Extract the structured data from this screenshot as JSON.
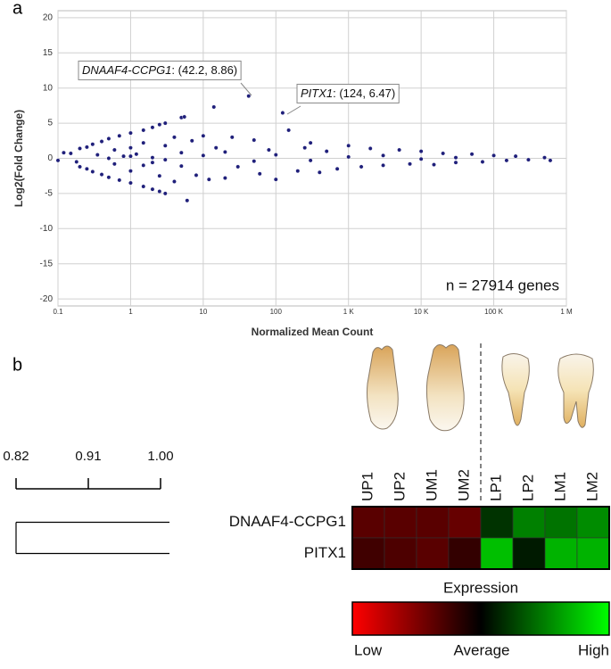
{
  "chart_data": [
    {
      "type": "scatter",
      "panel": "a",
      "xlabel": "Normalized Mean Count",
      "ylabel": "Log2(Fold Change)",
      "log_x": true,
      "grid": true,
      "color": "#1f1f7a",
      "xlim": [
        0.1,
        1000000
      ],
      "xticks": [
        0.1,
        1,
        10,
        100,
        {
          "value": 1000,
          "label": "1 K"
        },
        {
          "value": 10000,
          "label": "10 K"
        },
        {
          "value": 100000,
          "label": "100 K"
        },
        {
          "value": 1000000,
          "label": "1 M"
        }
      ],
      "ylim": [
        -21,
        21
      ],
      "yticks": [
        20,
        15,
        10,
        5,
        0,
        -5,
        -10,
        -15,
        -20
      ],
      "x": [
        0.1,
        0.12,
        0.15,
        0.18,
        0.2,
        0.2,
        0.25,
        0.25,
        0.3,
        0.3,
        0.35,
        0.4,
        0.4,
        0.5,
        0.5,
        0.6,
        0.6,
        0.7,
        0.7,
        0.8,
        1,
        1,
        1,
        1,
        1.2,
        1.5,
        1.5,
        1.5,
        1.5,
        2,
        2,
        2,
        2.5,
        2.5,
        2.5,
        3,
        3,
        3,
        4,
        4,
        5,
        5.5,
        6,
        5,
        7,
        8,
        10,
        12,
        14,
        15,
        20,
        25,
        30,
        42.2,
        50,
        60,
        80,
        100,
        124,
        150,
        200,
        250,
        300,
        400,
        500,
        700,
        1000,
        1500,
        2000,
        3000,
        5000,
        7000,
        10000,
        15000,
        20000,
        30000,
        50000,
        70000,
        100000,
        150000,
        200000,
        300000,
        500000,
        600000,
        0.5,
        1,
        2,
        3,
        5,
        10,
        20,
        50,
        100,
        300,
        1000,
        3000,
        10000,
        30000
      ],
      "values": [
        -0.3,
        0.8,
        0.7,
        -0.5,
        1.4,
        -1.2,
        1.6,
        -1.5,
        2.0,
        -1.9,
        0.5,
        2.4,
        -2.3,
        2.8,
        -2.7,
        1.2,
        -0.8,
        3.2,
        -3.1,
        0.3,
        3.6,
        -3.5,
        1.5,
        -1.8,
        0.6,
        4.0,
        -4.0,
        2.2,
        -1.0,
        4.4,
        -4.4,
        0.1,
        4.8,
        -4.7,
        -2.5,
        5.0,
        -5.0,
        1.8,
        3.0,
        -3.3,
        5.8,
        5.9,
        -6.0,
        0.8,
        2.5,
        -2.4,
        3.2,
        -3.0,
        7.3,
        1.5,
        -2.8,
        3.0,
        -1.2,
        8.86,
        2.6,
        -2.2,
        1.2,
        -3.0,
        6.47,
        4.0,
        -1.8,
        1.5,
        2.2,
        -2.0,
        1.0,
        -1.5,
        1.8,
        -1.2,
        1.4,
        -1.0,
        1.2,
        -0.8,
        1.0,
        -0.9,
        0.7,
        -0.6,
        0.6,
        -0.5,
        0.4,
        -0.3,
        0.3,
        -0.2,
        0.1,
        -0.3,
        0,
        0.3,
        -0.6,
        -0.2,
        -1.1,
        0.4,
        0.9,
        -0.4,
        0.5,
        -0.3,
        0.2,
        0.4,
        -0.1,
        0.1
      ],
      "annotations": [
        {
          "name": "DNAAF4-CCPG1",
          "text": ": (42.2, 8.86)"
        },
        {
          "name": "PITX1",
          "text": ": (124, 6.47)"
        }
      ],
      "note": "n = 27914 genes"
    },
    {
      "type": "heatmap",
      "panel": "b",
      "columns": [
        "UP1",
        "UP2",
        "UM1",
        "UM2",
        "LP1",
        "LP2",
        "LM1",
        "LM2"
      ],
      "rows": [
        "DNAAF4-CCPG1",
        "PITX1"
      ],
      "values": [
        [
          -0.35,
          -0.35,
          -0.35,
          -0.4,
          0.2,
          0.5,
          0.45,
          0.55
        ],
        [
          -0.25,
          -0.3,
          -0.35,
          -0.2,
          0.75,
          0.1,
          0.7,
          0.7
        ]
      ],
      "zlim": [
        -1,
        1
      ],
      "colors": [
        "#ff0000",
        "#000000",
        "#00ff00"
      ],
      "colorbar_title": "Expression",
      "colorbar_labels": [
        "Low",
        "Average",
        "High"
      ],
      "scale_xlim": [
        0.82,
        1.0
      ],
      "scale_xticks": [
        0.82,
        0.91,
        {
          "value": 1.0,
          "label": "1.00"
        }
      ],
      "dendrogram_merge": 0.82
    }
  ]
}
